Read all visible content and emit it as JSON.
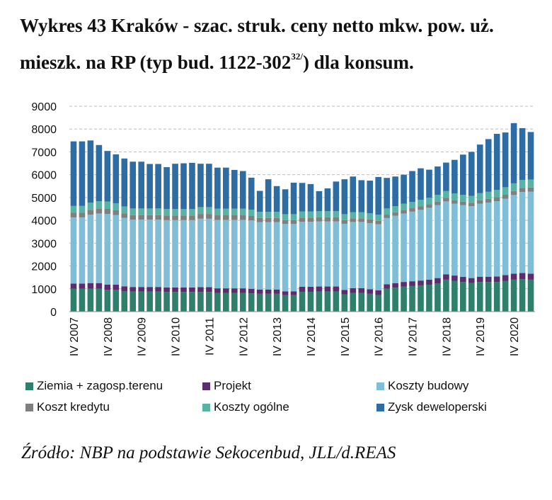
{
  "title": {
    "text": "Wykres 43 Kraków - szac. struk. ceny netto mkw. pow. uż. mieszk. na RP (typ bud. 1122-302",
    "sup": "32/",
    "suffix": ") dla konsum."
  },
  "source": "Źródło: NBP na podstawie Sekocenbud, JLL/d.REAS",
  "chart_data": {
    "type": "bar",
    "stacked": true,
    "ylim": [
      0,
      9000
    ],
    "yticks": [
      0,
      1000,
      2000,
      3000,
      4000,
      5000,
      6000,
      7000,
      8000,
      9000
    ],
    "grid": "horizontal dashed",
    "legend_position": "bottom",
    "x_tick_labels": [
      {
        "label": "IV 2007",
        "index": 0
      },
      {
        "label": "IV 2008",
        "index": 4
      },
      {
        "label": "IV 2009",
        "index": 8
      },
      {
        "label": "IV 2010",
        "index": 12
      },
      {
        "label": "IV 2011",
        "index": 16
      },
      {
        "label": "IV 2012",
        "index": 20
      },
      {
        "label": "IV 2013",
        "index": 24
      },
      {
        "label": "IV 2014",
        "index": 28
      },
      {
        "label": "IV 2015",
        "index": 32
      },
      {
        "label": "IV 2016",
        "index": 36
      },
      {
        "label": "IV 2017",
        "index": 40
      },
      {
        "label": "IV 2018",
        "index": 44
      },
      {
        "label": "IV 2019",
        "index": 48
      },
      {
        "label": "IV 2020",
        "index": 52
      }
    ],
    "series": [
      {
        "name": "Ziemia + zagosp.terenu",
        "color": "#2e7f6b",
        "values": [
          1000,
          1000,
          1000,
          1000,
          950,
          950,
          900,
          880,
          880,
          880,
          880,
          860,
          860,
          860,
          860,
          860,
          860,
          820,
          820,
          820,
          820,
          800,
          780,
          780,
          780,
          720,
          720,
          870,
          870,
          880,
          880,
          880,
          750,
          820,
          820,
          780,
          730,
          1000,
          1050,
          1100,
          1120,
          1150,
          1180,
          1230,
          1400,
          1350,
          1300,
          1250,
          1300,
          1300,
          1300,
          1350,
          1400,
          1420,
          1400
        ]
      },
      {
        "name": "Projekt",
        "color": "#5a2d6e",
        "values": [
          230,
          230,
          250,
          250,
          230,
          230,
          210,
          200,
          200,
          200,
          200,
          200,
          200,
          200,
          200,
          210,
          210,
          200,
          200,
          200,
          200,
          200,
          190,
          190,
          190,
          170,
          170,
          220,
          220,
          220,
          220,
          220,
          200,
          210,
          210,
          200,
          200,
          200,
          200,
          200,
          210,
          210,
          220,
          240,
          230,
          230,
          220,
          220,
          230,
          230,
          240,
          250,
          260,
          270,
          260
        ]
      },
      {
        "name": "Koszty budowy",
        "color": "#7fbed6",
        "values": [
          2900,
          2900,
          3000,
          3050,
          3100,
          3050,
          3000,
          2950,
          2950,
          2950,
          2950,
          2950,
          2950,
          2950,
          2950,
          3000,
          3000,
          3000,
          3000,
          3000,
          3000,
          3000,
          2950,
          2950,
          2950,
          2950,
          2950,
          2850,
          2850,
          2850,
          2850,
          2850,
          2900,
          2900,
          2900,
          2900,
          2900,
          2900,
          2950,
          3000,
          3050,
          3100,
          3150,
          3200,
          3200,
          3150,
          3150,
          3150,
          3200,
          3250,
          3300,
          3350,
          3450,
          3550,
          3600
        ]
      },
      {
        "name": "Koszt kredytu",
        "color": "#7f7f7f",
        "values": [
          200,
          200,
          210,
          220,
          220,
          210,
          200,
          200,
          200,
          200,
          200,
          200,
          200,
          200,
          200,
          210,
          210,
          200,
          200,
          200,
          200,
          190,
          180,
          180,
          180,
          170,
          170,
          180,
          180,
          180,
          180,
          180,
          160,
          160,
          160,
          160,
          150,
          150,
          150,
          150,
          150,
          150,
          150,
          150,
          150,
          150,
          150,
          150,
          150,
          160,
          170,
          170,
          170,
          180,
          180
        ]
      },
      {
        "name": "Koszty ogólne",
        "color": "#56b3a6",
        "values": [
          300,
          300,
          310,
          320,
          320,
          310,
          300,
          290,
          290,
          290,
          290,
          290,
          290,
          290,
          290,
          300,
          300,
          290,
          290,
          290,
          290,
          280,
          270,
          270,
          270,
          260,
          260,
          270,
          270,
          270,
          270,
          270,
          260,
          270,
          270,
          270,
          270,
          270,
          270,
          280,
          280,
          290,
          290,
          300,
          300,
          300,
          300,
          300,
          310,
          310,
          320,
          330,
          340,
          350,
          350
        ]
      },
      {
        "name": "Zysk deweloperski",
        "color": "#2e6da4",
        "values": [
          2830,
          2830,
          2730,
          2460,
          2220,
          2140,
          2100,
          2050,
          2050,
          1950,
          1950,
          1830,
          1980,
          2000,
          2020,
          1900,
          1900,
          1800,
          1800,
          1700,
          1650,
          1400,
          920,
          1430,
          1130,
          1090,
          1380,
          1250,
          1200,
          880,
          1000,
          1300,
          1530,
          1560,
          1400,
          1430,
          1650,
          1340,
          1300,
          1270,
          1350,
          1380,
          1230,
          1240,
          1250,
          1470,
          1760,
          1930,
          2130,
          2310,
          2460,
          2400,
          2640,
          2270,
          2080
        ]
      }
    ]
  },
  "legend": [
    {
      "label": "Ziemia + zagosp.terenu",
      "color": "#2e7f6b"
    },
    {
      "label": "Projekt",
      "color": "#5a2d6e"
    },
    {
      "label": "Koszty budowy",
      "color": "#7fbed6"
    },
    {
      "label": "Koszt kredytu",
      "color": "#7f7f7f"
    },
    {
      "label": "Koszty ogólne",
      "color": "#56b3a6"
    },
    {
      "label": "Zysk deweloperski",
      "color": "#2e6da4"
    }
  ]
}
